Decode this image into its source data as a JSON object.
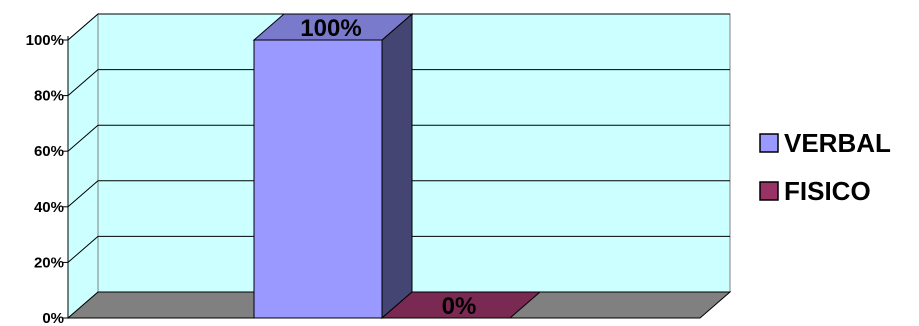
{
  "chart_data": {
    "type": "bar",
    "categories": [
      ""
    ],
    "series": [
      {
        "name": "VERBAL",
        "values": [
          100
        ],
        "color": "#9999FF",
        "label": "100%"
      },
      {
        "name": "FISICO",
        "values": [
          0
        ],
        "color": "#993366",
        "label": "0%"
      }
    ],
    "yticks": [
      "0%",
      "20%",
      "40%",
      "60%",
      "80%",
      "100%"
    ],
    "ylim": [
      0,
      100
    ],
    "grid": true,
    "legend": "right",
    "three_d": true,
    "wall_color": "#CCFFFF",
    "floor_color": "#808080"
  }
}
